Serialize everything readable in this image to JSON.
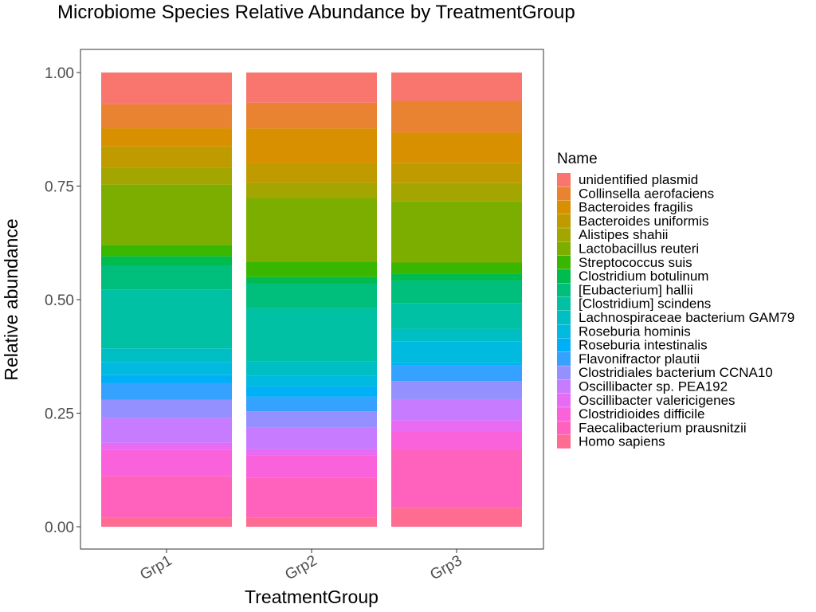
{
  "chart_data": {
    "type": "bar",
    "stacked": true,
    "title": "Microbiome Species Relative Abundance by TreatmentGroup",
    "xlabel": "TreatmentGroup",
    "ylabel": "Relative abundance",
    "ylim": [
      0,
      1
    ],
    "yticks": [
      "0.00",
      "0.25",
      "0.50",
      "0.75",
      "1.00"
    ],
    "categories": [
      "Grp1",
      "Grp2",
      "Grp3"
    ],
    "legend_title": "Name",
    "legend_position": "right",
    "grid": false,
    "series": [
      {
        "name": "unidentified plasmid",
        "color": "#F8766D",
        "values": [
          0.07,
          0.068,
          0.063
        ]
      },
      {
        "name": "Collinsella aerofaciens",
        "color": "#EA8331",
        "values": [
          0.053,
          0.058,
          0.071
        ]
      },
      {
        "name": "Bacteroides fragilis",
        "color": "#D89000",
        "values": [
          0.04,
          0.078,
          0.067
        ]
      },
      {
        "name": "Bacteroides uniformis",
        "color": "#C09B00",
        "values": [
          0.047,
          0.045,
          0.045
        ]
      },
      {
        "name": "Alistipes shahii",
        "color": "#A3A500",
        "values": [
          0.037,
          0.034,
          0.04
        ]
      },
      {
        "name": "Lactobacillus reuteri",
        "color": "#7CAE00",
        "values": [
          0.133,
          0.143,
          0.137
        ]
      },
      {
        "name": "Streptococcus suis",
        "color": "#39B600",
        "values": [
          0.025,
          0.035,
          0.025
        ]
      },
      {
        "name": "Clostridium botulinum",
        "color": "#00BB4E",
        "values": [
          0.02,
          0.015,
          0.015
        ]
      },
      {
        "name": "[Eubacterium] hallii",
        "color": "#00BF7D",
        "values": [
          0.053,
          0.055,
          0.05
        ]
      },
      {
        "name": "[Clostridium] scindens",
        "color": "#00C1A3",
        "values": [
          0.13,
          0.12,
          0.058
        ]
      },
      {
        "name": "Lachnospiraceae bacterium GAM79",
        "color": "#00BFC4",
        "values": [
          0.03,
          0.032,
          0.028
        ]
      },
      {
        "name": "Roseburia hominis",
        "color": "#00BAE0",
        "values": [
          0.028,
          0.025,
          0.048
        ]
      },
      {
        "name": "Roseburia intestinalis",
        "color": "#00B0F6",
        "values": [
          0.018,
          0.023,
          0.005
        ]
      },
      {
        "name": "Flavonifractor plautii",
        "color": "#35A2FF",
        "values": [
          0.037,
          0.033,
          0.035
        ]
      },
      {
        "name": "Clostridiales bacterium CCNA10",
        "color": "#9590FF",
        "values": [
          0.04,
          0.037,
          0.04
        ]
      },
      {
        "name": "Oscillibacter sp. PEA192",
        "color": "#C77CFF",
        "values": [
          0.055,
          0.048,
          0.047
        ]
      },
      {
        "name": "Oscillibacter valericigenes",
        "color": "#E76BF3",
        "values": [
          0.015,
          0.015,
          0.025
        ]
      },
      {
        "name": "Clostridioides difficile",
        "color": "#FA62DB",
        "values": [
          0.058,
          0.05,
          0.04
        ]
      },
      {
        "name": "Faecalibacterium prausnitzii",
        "color": "#FF62BC",
        "values": [
          0.092,
          0.09,
          0.13
        ]
      },
      {
        "name": "Homo sapiens",
        "color": "#FF6C91",
        "values": [
          0.02,
          0.02,
          0.042
        ]
      }
    ]
  }
}
